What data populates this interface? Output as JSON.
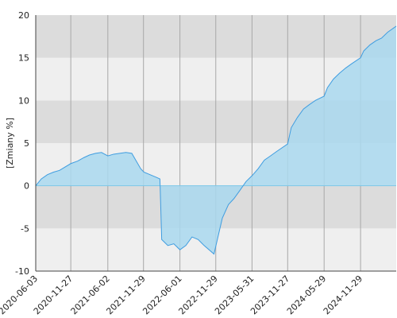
{
  "chart_data": {
    "type": "area",
    "y_label": "[Zmiany %]",
    "x": [
      "2020-06-03",
      "2020-07-01",
      "2020-08-01",
      "2020-09-01",
      "2020-10-01",
      "2020-11-27",
      "2021-01-01",
      "2021-02-01",
      "2021-03-01",
      "2021-04-01",
      "2021-05-01",
      "2021-06-02",
      "2021-07-01",
      "2021-08-01",
      "2021-09-01",
      "2021-10-01",
      "2021-11-15",
      "2021-12-01",
      "2022-01-01",
      "2022-02-01",
      "2022-02-20",
      "2022-03-01",
      "2022-04-01",
      "2022-05-01",
      "2022-06-01",
      "2022-07-01",
      "2022-08-01",
      "2022-09-01",
      "2022-10-01",
      "2022-11-20",
      "2022-12-15",
      "2023-01-01",
      "2023-02-01",
      "2023-03-01",
      "2023-04-01",
      "2023-05-01",
      "2023-06-01",
      "2023-07-01",
      "2023-08-01",
      "2023-09-01",
      "2023-10-01",
      "2023-11-27",
      "2023-12-15",
      "2024-01-15",
      "2024-02-15",
      "2024-03-15",
      "2024-04-15",
      "2024-05-29",
      "2024-06-15",
      "2024-07-15",
      "2024-08-15",
      "2024-09-15",
      "2024-10-15",
      "2024-11-29",
      "2024-12-15",
      "2025-01-15",
      "2025-02-15",
      "2025-03-15",
      "2025-04-15",
      "2025-05-28"
    ],
    "series": [
      {
        "color": "#3f9de0",
        "fill": "#a9d8ef",
        "values": [
          0,
          0.8,
          1.3,
          1.6,
          1.8,
          2.6,
          2.9,
          3.3,
          3.6,
          3.8,
          3.9,
          3.5,
          3.7,
          3.8,
          3.9,
          3.8,
          2.0,
          1.6,
          1.3,
          1.0,
          0.8,
          -6.3,
          -7.0,
          -6.8,
          -7.5,
          -7.0,
          -6.0,
          -6.3,
          -7.0,
          -8.0,
          -5.5,
          -3.8,
          -2.2,
          -1.5,
          -0.5,
          0.5,
          1.2,
          2.0,
          3.0,
          3.5,
          4.0,
          4.9,
          6.8,
          8.0,
          9.0,
          9.5,
          10.0,
          10.5,
          11.5,
          12.5,
          13.2,
          13.8,
          14.3,
          15.0,
          15.8,
          16.5,
          17.0,
          17.3,
          18.0,
          18.7
        ]
      }
    ],
    "xlim": [
      "2020-06-03",
      "2025-05-28"
    ],
    "xticks": [
      "2020-06-03",
      "2020-11-27",
      "2021-06-02",
      "2021-11-29",
      "2022-06-01",
      "2022-11-29",
      "2023-05-31",
      "2023-11-27",
      "2024-05-29",
      "2024-11-29"
    ],
    "ylim": [
      -10,
      20
    ],
    "yticks": [
      -10,
      -5,
      0,
      5,
      10,
      15,
      20
    ],
    "grid": true
  }
}
